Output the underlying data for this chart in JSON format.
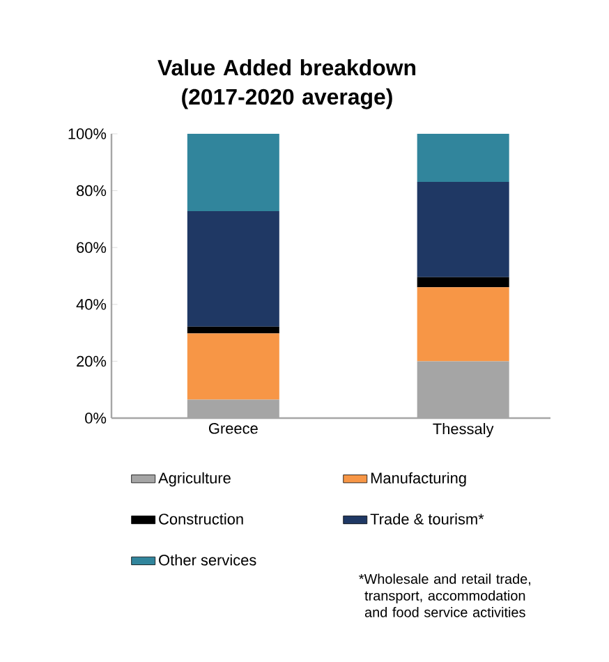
{
  "chart_data": {
    "type": "bar",
    "stacked": true,
    "title": "Value Added breakdown (2017-2020 average)",
    "categories": [
      "Greece",
      "Thessaly"
    ],
    "series": [
      {
        "name": "Agriculture",
        "color": "#a5a5a5",
        "values": [
          6.5,
          20
        ]
      },
      {
        "name": "Manufacturing",
        "color": "#f79646",
        "values": [
          23.3,
          26
        ]
      },
      {
        "name": "Construction",
        "color": "#000000",
        "values": [
          2.4,
          3.6
        ]
      },
      {
        "name": "Trade & tourism*",
        "color": "#1f3864",
        "values": [
          40.6,
          33.5
        ]
      },
      {
        "name": "Other services",
        "color": "#31859c",
        "values": [
          27.2,
          16.9
        ]
      }
    ],
    "ylim": [
      0,
      100
    ],
    "yticks": [
      {
        "value": 0,
        "label": "0%"
      },
      {
        "value": 20,
        "label": "20%"
      },
      {
        "value": 40,
        "label": "40%"
      },
      {
        "value": 60,
        "label": "60%"
      },
      {
        "value": 80,
        "label": "80%"
      },
      {
        "value": 100,
        "label": "100%"
      }
    ],
    "legend": "bottom",
    "grid": false,
    "annotations": [
      "*Wholesale and retail trade, transport, accommodation and food service activities"
    ]
  }
}
